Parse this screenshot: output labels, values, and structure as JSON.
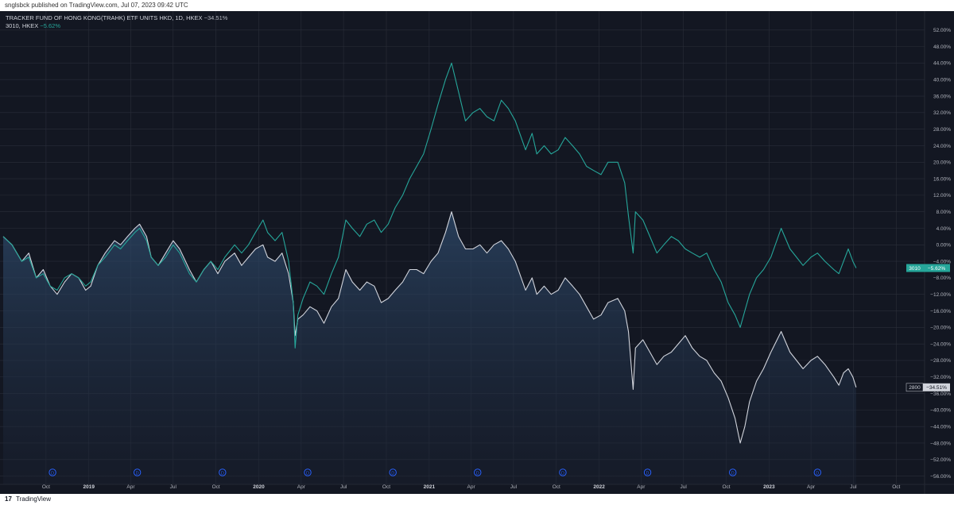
{
  "header": {
    "publish_note": "snglsbck published on TradingView.com, Jul 07, 2023 09:42 UTC"
  },
  "legend": {
    "series1_title": "TRACKER FUND OF HONG KONG(TRAHK) ETF UNITS HKD, 1D, HKEX",
    "series1_pct": "−34.51%",
    "series2_title": "3010, HKEX",
    "series2_pct": "−5.62%"
  },
  "footer": {
    "logo": "17",
    "brand": "TradingView"
  },
  "colors": {
    "background": "#131722",
    "series_white": "#d1d4dc",
    "series_teal": "#26a69a",
    "grid": "#2a2e39",
    "dividend_marker": "#2962ff"
  },
  "chart_data": {
    "type": "line",
    "y_unit": "%",
    "ylim": [
      -58,
      56
    ],
    "y_ticks": [
      "52.00%",
      "48.00%",
      "44.00%",
      "40.00%",
      "36.00%",
      "32.00%",
      "28.00%",
      "24.00%",
      "20.00%",
      "16.00%",
      "12.00%",
      "8.00%",
      "4.00%",
      "0.00%",
      "−4.00%",
      "−8.00%",
      "−12.00%",
      "−16.00%",
      "−20.00%",
      "−24.00%",
      "−28.00%",
      "−32.00%",
      "−36.00%",
      "−40.00%",
      "−44.00%",
      "−48.00%",
      "−52.00%",
      "−56.00%"
    ],
    "x_ticks": [
      "Oct",
      "2019",
      "Apr",
      "Jul",
      "Oct",
      "2020",
      "Apr",
      "Jul",
      "Oct",
      "2021",
      "Apr",
      "Jul",
      "Oct",
      "2022",
      "Apr",
      "Jul",
      "Oct",
      "2023",
      "Apr",
      "Jul",
      "Oct"
    ],
    "x_tick_years": [
      "2019",
      "2020",
      "2021",
      "2022",
      "2023"
    ],
    "grid": true,
    "dividend_label": "D",
    "dividend_dates": [
      "2018-10-15",
      "2019-04-15",
      "2019-10-15",
      "2020-04-15",
      "2020-10-15",
      "2021-04-15",
      "2021-10-15",
      "2022-04-15",
      "2022-10-15",
      "2023-04-15"
    ],
    "series": [
      {
        "symbol": "2800",
        "last_label": "−34.51%",
        "color": "#d1d4dc",
        "filled": true,
        "points": [
          [
            "2018-07-01",
            2
          ],
          [
            "2018-07-20",
            0
          ],
          [
            "2018-08-10",
            -4
          ],
          [
            "2018-08-25",
            -2
          ],
          [
            "2018-09-10",
            -8
          ],
          [
            "2018-09-25",
            -6
          ],
          [
            "2018-10-10",
            -10
          ],
          [
            "2018-10-25",
            -12
          ],
          [
            "2018-11-10",
            -9
          ],
          [
            "2018-11-25",
            -7
          ],
          [
            "2018-12-10",
            -8
          ],
          [
            "2018-12-25",
            -11
          ],
          [
            "2019-01-05",
            -10
          ],
          [
            "2019-01-20",
            -5
          ],
          [
            "2019-02-05",
            -2
          ],
          [
            "2019-02-25",
            1
          ],
          [
            "2019-03-10",
            0
          ],
          [
            "2019-03-25",
            2
          ],
          [
            "2019-04-10",
            4
          ],
          [
            "2019-04-20",
            5
          ],
          [
            "2019-05-05",
            2
          ],
          [
            "2019-05-15",
            -3
          ],
          [
            "2019-05-30",
            -5
          ],
          [
            "2019-06-15",
            -2
          ],
          [
            "2019-07-01",
            1
          ],
          [
            "2019-07-15",
            -1
          ],
          [
            "2019-08-05",
            -6
          ],
          [
            "2019-08-20",
            -9
          ],
          [
            "2019-09-05",
            -6
          ],
          [
            "2019-09-20",
            -4
          ],
          [
            "2019-10-05",
            -7
          ],
          [
            "2019-10-20",
            -4
          ],
          [
            "2019-11-10",
            -2
          ],
          [
            "2019-11-25",
            -5
          ],
          [
            "2019-12-10",
            -3
          ],
          [
            "2019-12-25",
            -1
          ],
          [
            "2020-01-10",
            0
          ],
          [
            "2020-01-20",
            -3
          ],
          [
            "2020-02-05",
            -4
          ],
          [
            "2020-02-20",
            -2
          ],
          [
            "2020-03-05",
            -7
          ],
          [
            "2020-03-15",
            -14
          ],
          [
            "2020-03-19",
            -22
          ],
          [
            "2020-03-25",
            -18
          ],
          [
            "2020-04-05",
            -17
          ],
          [
            "2020-04-20",
            -15
          ],
          [
            "2020-05-05",
            -16
          ],
          [
            "2020-05-20",
            -19
          ],
          [
            "2020-06-05",
            -15
          ],
          [
            "2020-06-20",
            -13
          ],
          [
            "2020-07-06",
            -6
          ],
          [
            "2020-07-20",
            -9
          ],
          [
            "2020-08-05",
            -11
          ],
          [
            "2020-08-20",
            -9
          ],
          [
            "2020-09-05",
            -10
          ],
          [
            "2020-09-20",
            -14
          ],
          [
            "2020-10-05",
            -13
          ],
          [
            "2020-10-20",
            -11
          ],
          [
            "2020-11-05",
            -9
          ],
          [
            "2020-11-20",
            -6
          ],
          [
            "2020-12-05",
            -6
          ],
          [
            "2020-12-20",
            -7
          ],
          [
            "2021-01-05",
            -4
          ],
          [
            "2021-01-20",
            -2
          ],
          [
            "2021-02-05",
            3
          ],
          [
            "2021-02-18",
            8
          ],
          [
            "2021-03-05",
            2
          ],
          [
            "2021-03-20",
            -1
          ],
          [
            "2021-04-05",
            -1
          ],
          [
            "2021-04-20",
            0
          ],
          [
            "2021-05-05",
            -2
          ],
          [
            "2021-05-20",
            0
          ],
          [
            "2021-06-05",
            1
          ],
          [
            "2021-06-20",
            -1
          ],
          [
            "2021-07-05",
            -4
          ],
          [
            "2021-07-27",
            -11
          ],
          [
            "2021-08-10",
            -8
          ],
          [
            "2021-08-20",
            -12
          ],
          [
            "2021-09-05",
            -10
          ],
          [
            "2021-09-20",
            -12
          ],
          [
            "2021-10-05",
            -11
          ],
          [
            "2021-10-20",
            -8
          ],
          [
            "2021-11-05",
            -10
          ],
          [
            "2021-11-20",
            -12
          ],
          [
            "2021-12-05",
            -15
          ],
          [
            "2021-12-20",
            -18
          ],
          [
            "2022-01-05",
            -17
          ],
          [
            "2022-01-20",
            -14
          ],
          [
            "2022-02-10",
            -13
          ],
          [
            "2022-02-25",
            -16
          ],
          [
            "2022-03-05",
            -21
          ],
          [
            "2022-03-15",
            -35
          ],
          [
            "2022-03-20",
            -25
          ],
          [
            "2022-04-05",
            -23
          ],
          [
            "2022-04-20",
            -26
          ],
          [
            "2022-05-05",
            -29
          ],
          [
            "2022-05-20",
            -27
          ],
          [
            "2022-06-05",
            -26
          ],
          [
            "2022-06-20",
            -24
          ],
          [
            "2022-07-05",
            -22
          ],
          [
            "2022-07-20",
            -25
          ],
          [
            "2022-08-05",
            -27
          ],
          [
            "2022-08-20",
            -28
          ],
          [
            "2022-09-05",
            -31
          ],
          [
            "2022-09-20",
            -33
          ],
          [
            "2022-10-05",
            -37
          ],
          [
            "2022-10-20",
            -42
          ],
          [
            "2022-10-31",
            -48
          ],
          [
            "2022-11-10",
            -44
          ],
          [
            "2022-11-20",
            -38
          ],
          [
            "2022-12-05",
            -33
          ],
          [
            "2022-12-20",
            -30
          ],
          [
            "2023-01-05",
            -26
          ],
          [
            "2023-01-27",
            -21
          ],
          [
            "2023-02-15",
            -26
          ],
          [
            "2023-03-01",
            -28
          ],
          [
            "2023-03-15",
            -30
          ],
          [
            "2023-04-01",
            -28
          ],
          [
            "2023-04-15",
            -27
          ],
          [
            "2023-05-01",
            -29
          ],
          [
            "2023-05-20",
            -32
          ],
          [
            "2023-05-31",
            -34
          ],
          [
            "2023-06-10",
            -31
          ],
          [
            "2023-06-20",
            -30
          ],
          [
            "2023-06-30",
            -32
          ],
          [
            "2023-07-07",
            -34.51
          ]
        ]
      },
      {
        "symbol": "3010",
        "last_label": "−5.62%",
        "color": "#26a69a",
        "filled": false,
        "points": [
          [
            "2018-07-01",
            2
          ],
          [
            "2018-07-20",
            0
          ],
          [
            "2018-08-10",
            -4
          ],
          [
            "2018-08-25",
            -3
          ],
          [
            "2018-09-10",
            -8
          ],
          [
            "2018-09-25",
            -7
          ],
          [
            "2018-10-10",
            -10
          ],
          [
            "2018-10-25",
            -11
          ],
          [
            "2018-11-10",
            -8
          ],
          [
            "2018-11-25",
            -7
          ],
          [
            "2018-12-10",
            -8
          ],
          [
            "2018-12-25",
            -10
          ],
          [
            "2019-01-05",
            -9
          ],
          [
            "2019-01-20",
            -5
          ],
          [
            "2019-02-05",
            -3
          ],
          [
            "2019-02-25",
            0
          ],
          [
            "2019-03-10",
            -1
          ],
          [
            "2019-03-25",
            1
          ],
          [
            "2019-04-10",
            3
          ],
          [
            "2019-04-20",
            4
          ],
          [
            "2019-05-05",
            1
          ],
          [
            "2019-05-15",
            -3
          ],
          [
            "2019-05-30",
            -5
          ],
          [
            "2019-06-15",
            -3
          ],
          [
            "2019-07-01",
            0
          ],
          [
            "2019-07-15",
            -2
          ],
          [
            "2019-08-05",
            -7
          ],
          [
            "2019-08-20",
            -9
          ],
          [
            "2019-09-05",
            -6
          ],
          [
            "2019-09-20",
            -4
          ],
          [
            "2019-10-05",
            -6
          ],
          [
            "2019-10-20",
            -3
          ],
          [
            "2019-11-10",
            0
          ],
          [
            "2019-11-25",
            -2
          ],
          [
            "2019-12-10",
            0
          ],
          [
            "2019-12-25",
            3
          ],
          [
            "2020-01-10",
            6
          ],
          [
            "2020-01-20",
            3
          ],
          [
            "2020-02-05",
            1
          ],
          [
            "2020-02-20",
            3
          ],
          [
            "2020-03-05",
            -4
          ],
          [
            "2020-03-15",
            -14
          ],
          [
            "2020-03-19",
            -25
          ],
          [
            "2020-03-25",
            -17
          ],
          [
            "2020-04-05",
            -13
          ],
          [
            "2020-04-20",
            -9
          ],
          [
            "2020-05-05",
            -10
          ],
          [
            "2020-05-20",
            -12
          ],
          [
            "2020-06-05",
            -7
          ],
          [
            "2020-06-20",
            -3
          ],
          [
            "2020-07-06",
            6
          ],
          [
            "2020-07-20",
            4
          ],
          [
            "2020-08-05",
            2
          ],
          [
            "2020-08-20",
            5
          ],
          [
            "2020-09-05",
            6
          ],
          [
            "2020-09-20",
            3
          ],
          [
            "2020-10-05",
            5
          ],
          [
            "2020-10-20",
            9
          ],
          [
            "2020-11-05",
            12
          ],
          [
            "2020-11-20",
            16
          ],
          [
            "2020-12-05",
            19
          ],
          [
            "2020-12-20",
            22
          ],
          [
            "2021-01-05",
            28
          ],
          [
            "2021-01-20",
            34
          ],
          [
            "2021-02-05",
            40
          ],
          [
            "2021-02-18",
            44
          ],
          [
            "2021-03-05",
            37
          ],
          [
            "2021-03-20",
            30
          ],
          [
            "2021-04-05",
            32
          ],
          [
            "2021-04-20",
            33
          ],
          [
            "2021-05-05",
            31
          ],
          [
            "2021-05-20",
            30
          ],
          [
            "2021-06-05",
            35
          ],
          [
            "2021-06-20",
            33
          ],
          [
            "2021-07-05",
            30
          ],
          [
            "2021-07-27",
            23
          ],
          [
            "2021-08-10",
            27
          ],
          [
            "2021-08-20",
            22
          ],
          [
            "2021-09-05",
            24
          ],
          [
            "2021-09-20",
            22
          ],
          [
            "2021-10-05",
            23
          ],
          [
            "2021-10-20",
            26
          ],
          [
            "2021-11-05",
            24
          ],
          [
            "2021-11-20",
            22
          ],
          [
            "2021-12-05",
            19
          ],
          [
            "2021-12-20",
            18
          ],
          [
            "2022-01-05",
            17
          ],
          [
            "2022-01-20",
            20
          ],
          [
            "2022-02-10",
            20
          ],
          [
            "2022-02-25",
            15
          ],
          [
            "2022-03-05",
            7
          ],
          [
            "2022-03-15",
            -2
          ],
          [
            "2022-03-20",
            8
          ],
          [
            "2022-04-05",
            6
          ],
          [
            "2022-04-20",
            2
          ],
          [
            "2022-05-05",
            -2
          ],
          [
            "2022-05-20",
            0
          ],
          [
            "2022-06-05",
            2
          ],
          [
            "2022-06-20",
            1
          ],
          [
            "2022-07-05",
            -1
          ],
          [
            "2022-07-20",
            -2
          ],
          [
            "2022-08-05",
            -3
          ],
          [
            "2022-08-20",
            -2
          ],
          [
            "2022-09-05",
            -6
          ],
          [
            "2022-09-20",
            -9
          ],
          [
            "2022-10-05",
            -14
          ],
          [
            "2022-10-20",
            -17
          ],
          [
            "2022-10-31",
            -20
          ],
          [
            "2022-11-10",
            -16
          ],
          [
            "2022-11-20",
            -12
          ],
          [
            "2022-12-05",
            -8
          ],
          [
            "2022-12-20",
            -6
          ],
          [
            "2023-01-05",
            -3
          ],
          [
            "2023-01-27",
            4
          ],
          [
            "2023-02-15",
            -1
          ],
          [
            "2023-03-01",
            -3
          ],
          [
            "2023-03-15",
            -5
          ],
          [
            "2023-04-01",
            -3
          ],
          [
            "2023-04-15",
            -2
          ],
          [
            "2023-05-01",
            -4
          ],
          [
            "2023-05-20",
            -6
          ],
          [
            "2023-05-31",
            -7
          ],
          [
            "2023-06-10",
            -4
          ],
          [
            "2023-06-20",
            -1
          ],
          [
            "2023-06-30",
            -4
          ],
          [
            "2023-07-07",
            -5.62
          ]
        ]
      }
    ]
  }
}
